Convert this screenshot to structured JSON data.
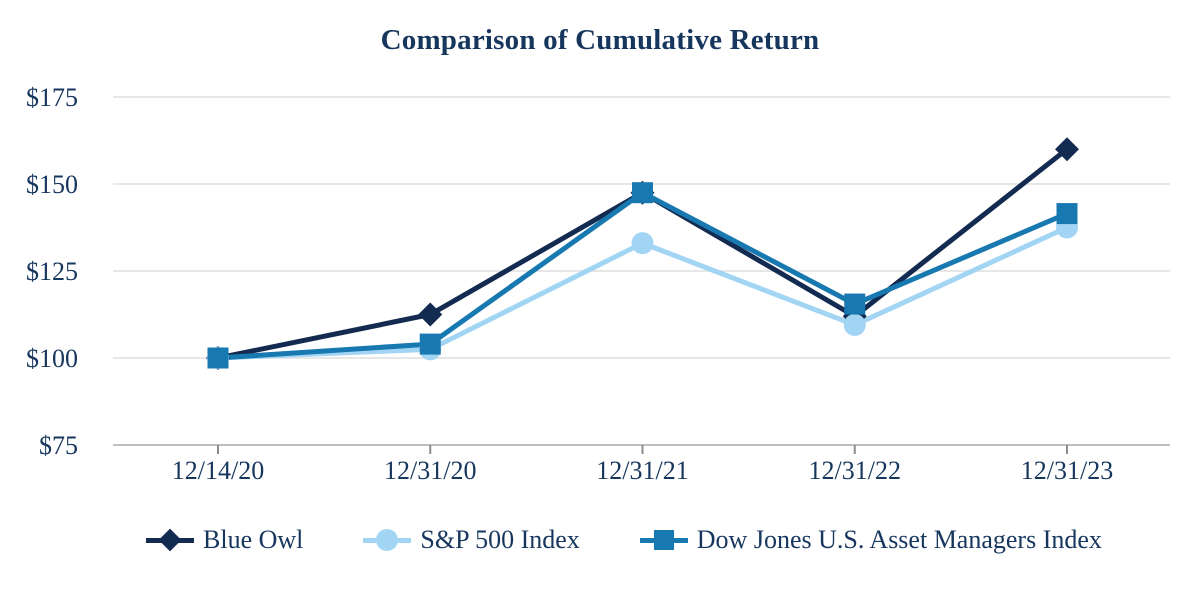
{
  "chart_data": {
    "type": "line",
    "title": "Comparison of Cumulative Return",
    "categories": [
      "12/14/20",
      "12/31/20",
      "12/31/21",
      "12/31/22",
      "12/31/23"
    ],
    "series": [
      {
        "name": "Blue Owl",
        "color": "#132B50",
        "marker": "diamond",
        "values": [
          100,
          112.5,
          147.5,
          112,
          160
        ]
      },
      {
        "name": "S&P 500 Index",
        "color": "#A2D4F4",
        "marker": "circle",
        "values": [
          100,
          102.5,
          133,
          109.5,
          137.5
        ]
      },
      {
        "name": "Dow Jones U.S. Asset Managers Index",
        "color": "#1878B0",
        "marker": "square",
        "values": [
          100,
          104,
          147.5,
          115.5,
          141.5
        ]
      }
    ],
    "y_ticks": [
      75,
      100,
      125,
      150,
      175
    ],
    "y_tick_labels": [
      "$75",
      "$100",
      "$125",
      "$150",
      "$175"
    ],
    "ylim": [
      75,
      175
    ],
    "grid": true,
    "legend_position": "bottom",
    "ylabel": "",
    "xlabel": ""
  },
  "colors": {
    "title_text": "#17365D",
    "axis_label_text": "#17365D",
    "gridline": "#E7E7E7",
    "axis_line": "#BFBFBF",
    "tick_mark": "#8C8C8C",
    "background": "#FFFFFF"
  }
}
